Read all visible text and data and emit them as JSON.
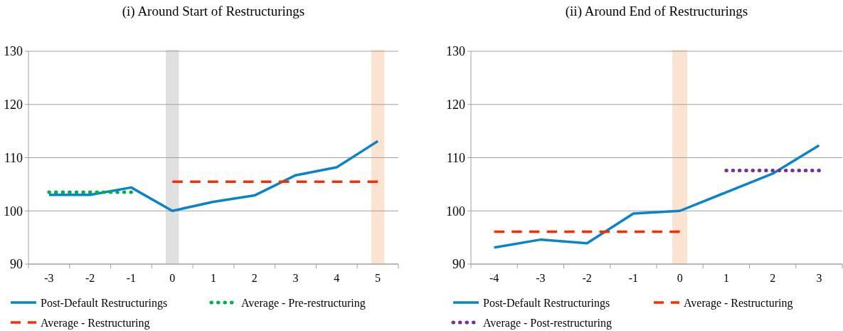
{
  "chart_data": [
    {
      "type": "line",
      "title": "(i)  Around Start of Restructurings",
      "categories": [
        "-3",
        "-2",
        "-1",
        "0",
        "1",
        "2",
        "3",
        "4",
        "5"
      ],
      "ylim": [
        90,
        130
      ],
      "yticks": [
        90,
        100,
        110,
        120,
        130
      ],
      "grid": "y",
      "legend": "bottom",
      "marker": "none",
      "series": [
        {
          "name": "Post-Default Restructurings",
          "color": "#0a84c8",
          "line_style": "solid",
          "values": [
            103,
            103,
            104.4,
            100,
            101.7,
            102.9,
            106.7,
            108.2,
            113.1
          ]
        },
        {
          "name": "Average - Pre-restructuring",
          "color": "#00b050",
          "line_style": "dotted",
          "values": [
            103.5,
            103.5,
            103.5,
            null,
            null,
            null,
            null,
            null,
            null
          ]
        },
        {
          "name": "Average - Restructuring",
          "color": "#ff2a00",
          "line_style": "dashed",
          "values": [
            null,
            null,
            null,
            105.5,
            105.5,
            105.5,
            105.5,
            105.5,
            105.5
          ]
        }
      ],
      "bands": [
        {
          "axis": "x",
          "from": "0",
          "to": "0",
          "color": "#e0e0e0"
        },
        {
          "axis": "x",
          "from": "5",
          "to": "5",
          "color": "#fbe3d1"
        }
      ]
    },
    {
      "type": "line",
      "title": "(ii)  Around End of Restructurings",
      "categories": [
        "-4",
        "-3",
        "-2",
        "-1",
        "0",
        "1",
        "2",
        "3"
      ],
      "ylim": [
        90,
        130
      ],
      "yticks": [
        90,
        100,
        110,
        120,
        130
      ],
      "grid": "y",
      "legend": "bottom",
      "marker": "none",
      "series": [
        {
          "name": "Post-Default Restructurings",
          "color": "#0a84c8",
          "line_style": "solid",
          "values": [
            93.1,
            94.6,
            93.9,
            99.5,
            100,
            103.5,
            107,
            112.3
          ]
        },
        {
          "name": "Average - Restructuring",
          "color": "#ff2a00",
          "line_style": "dashed",
          "values": [
            96.1,
            96.1,
            96.1,
            96.1,
            96.1,
            null,
            null,
            null
          ]
        },
        {
          "name": "Average - Post-restructuring",
          "color": "#7030a0",
          "line_style": "dotted",
          "values": [
            null,
            null,
            null,
            null,
            null,
            107.6,
            107.6,
            107.6
          ]
        }
      ],
      "bands": [
        {
          "axis": "x",
          "from": "0",
          "to": "0",
          "color": "#fbe3d1"
        }
      ]
    }
  ]
}
